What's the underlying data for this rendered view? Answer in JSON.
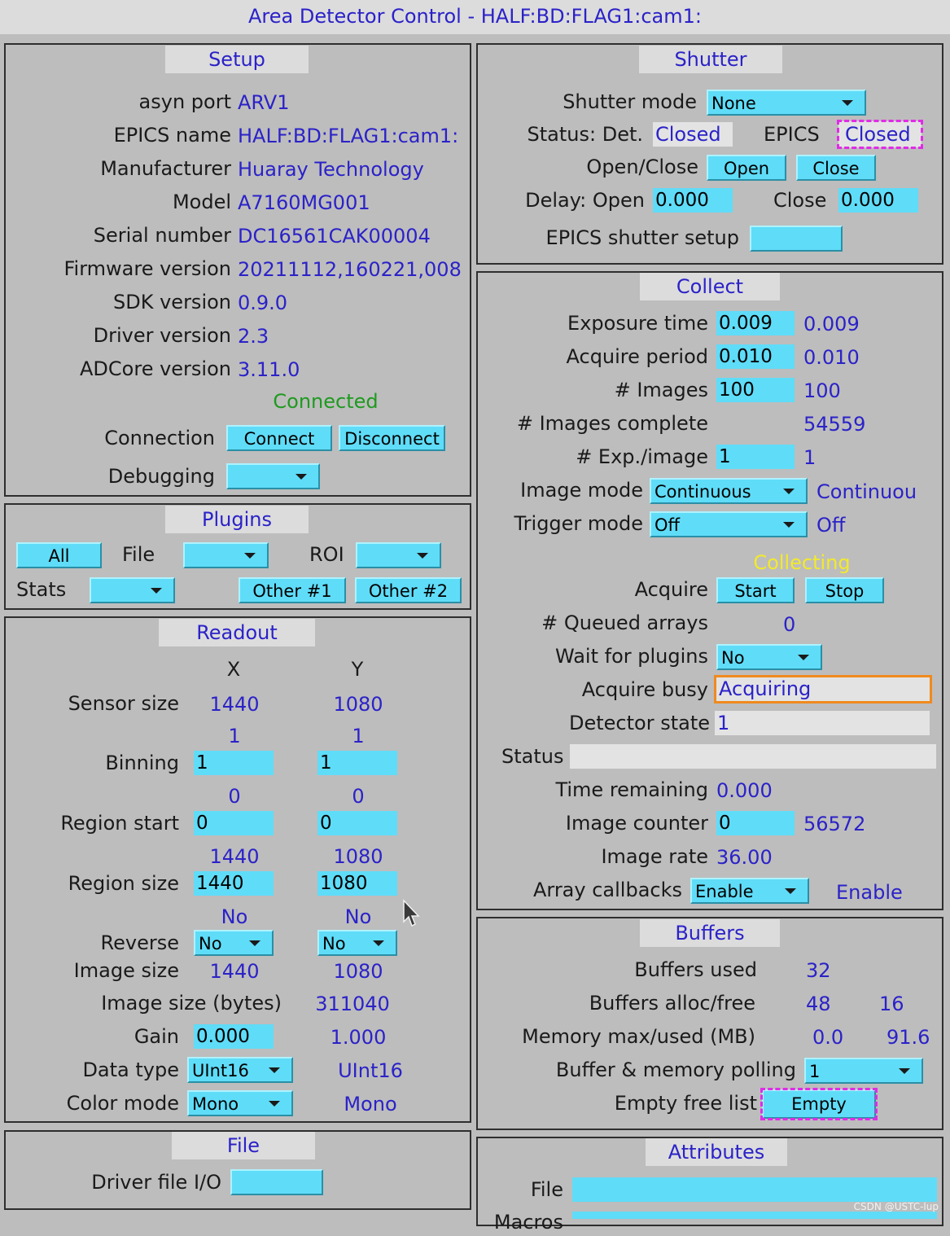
{
  "title": "Area Detector Control - HALF:BD:FLAG1:cam1:",
  "setup": {
    "title": "Setup",
    "rows": [
      {
        "label": "asyn port",
        "value": "ARV1"
      },
      {
        "label": "EPICS name",
        "value": "HALF:BD:FLAG1:cam1:"
      },
      {
        "label": "Manufacturer",
        "value": "Huaray Technology"
      },
      {
        "label": "Model",
        "value": "A7160MG001"
      },
      {
        "label": "Serial number",
        "value": "DC16561CAK00004"
      },
      {
        "label": "Firmware version",
        "value": "20211112,160221,008"
      },
      {
        "label": "SDK version",
        "value": "0.9.0"
      },
      {
        "label": "Driver version",
        "value": "2.3"
      },
      {
        "label": "ADCore version",
        "value": "3.11.0"
      }
    ],
    "status": "Connected",
    "connection_label": "Connection",
    "connect_button": "Connect",
    "disconnect_button": "Disconnect",
    "debugging_label": "Debugging",
    "debugging_value": ""
  },
  "plugins": {
    "title": "Plugins",
    "all_button": "All",
    "file_label": "File",
    "file_value": "",
    "roi_label": "ROI",
    "roi_value": "",
    "stats_label": "Stats",
    "stats_value": "",
    "other1_button": "Other #1",
    "other2_button": "Other #2"
  },
  "readout": {
    "title": "Readout",
    "col_x": "X",
    "col_y": "Y",
    "sensor_size": {
      "label": "Sensor size",
      "x": "1440",
      "y": "1080"
    },
    "binning": {
      "label": "Binning",
      "x_rbv": "1",
      "y_rbv": "1",
      "x_input": "1",
      "y_input": "1"
    },
    "region_start": {
      "label": "Region start",
      "x_rbv": "0",
      "y_rbv": "0",
      "x_input": "0",
      "y_input": "0"
    },
    "region_size": {
      "label": "Region size",
      "x_rbv": "1440",
      "y_rbv": "1080",
      "x_input": "1440",
      "y_input": "1080"
    },
    "reverse": {
      "label": "Reverse",
      "x_rbv": "No",
      "y_rbv": "No",
      "x_select": "No",
      "y_select": "No"
    },
    "image_size": {
      "label": "Image size",
      "x": "1440",
      "y": "1080"
    },
    "image_size_bytes": {
      "label": "Image size (bytes)",
      "value": "311040"
    },
    "gain": {
      "label": "Gain",
      "input": "0.000",
      "rbv": "1.000"
    },
    "data_type": {
      "label": "Data type",
      "select": "UInt16",
      "rbv": "UInt16"
    },
    "color_mode": {
      "label": "Color mode",
      "select": "Mono",
      "rbv": "Mono"
    }
  },
  "file_panel": {
    "title": "File",
    "driver_label": "Driver file I/O",
    "driver_value": ""
  },
  "shutter": {
    "title": "Shutter",
    "mode_label": "Shutter mode",
    "mode_value": "None",
    "status_label": "Status: Det.",
    "det_status": "Closed",
    "epics_label": "EPICS",
    "epics_status": "Closed",
    "openclose_label": "Open/Close",
    "open_button": "Open",
    "close_button": "Close",
    "delay_open_label": "Delay: Open",
    "delay_open_value": "0.000",
    "delay_close_label": "Close",
    "delay_close_value": "0.000",
    "epics_setup_label": "EPICS shutter setup",
    "epics_setup_value": ""
  },
  "collect": {
    "title": "Collect",
    "exposure": {
      "label": "Exposure time",
      "input": "0.009",
      "rbv": "0.009"
    },
    "period": {
      "label": "Acquire period",
      "input": "0.010",
      "rbv": "0.010"
    },
    "images": {
      "label": "# Images",
      "input": "100",
      "rbv": "100"
    },
    "images_complete": {
      "label": "# Images complete",
      "rbv": "54559"
    },
    "exp_per_image": {
      "label": "# Exp./image",
      "input": "1",
      "rbv": "1"
    },
    "image_mode": {
      "label": "Image mode",
      "select": "Continuous",
      "rbv": "Continuou"
    },
    "trigger_mode": {
      "label": "Trigger mode",
      "select": "Off",
      "rbv": "Off"
    },
    "state": "Collecting",
    "acquire_label": "Acquire",
    "start_button": "Start",
    "stop_button": "Stop",
    "queued": {
      "label": "# Queued arrays",
      "rbv": "0"
    },
    "wait_plugins": {
      "label": "Wait for plugins",
      "select": "No"
    },
    "busy": {
      "label": "Acquire busy",
      "rbv": "Acquiring"
    },
    "detector_state": {
      "label": "Detector state",
      "rbv": "1"
    },
    "status_label": "Status",
    "status_value": "",
    "time_remaining": {
      "label": "Time remaining",
      "rbv": "0.000"
    },
    "image_counter": {
      "label": "Image counter",
      "input": "0",
      "rbv": "56572"
    },
    "image_rate": {
      "label": "Image rate",
      "rbv": "36.00"
    },
    "array_callbacks": {
      "label": "Array callbacks",
      "select": "Enable",
      "rbv": "Enable"
    }
  },
  "buffers": {
    "title": "Buffers",
    "used": {
      "label": "Buffers used",
      "value": "32"
    },
    "alloc_free": {
      "label": "Buffers alloc/free",
      "alloc": "48",
      "free": "16"
    },
    "memory": {
      "label": "Memory max/used (MB)",
      "max": "0.0",
      "used": "91.6"
    },
    "polling": {
      "label": "Buffer & memory polling",
      "select": "1"
    },
    "empty_free": {
      "label": "Empty free list",
      "button": "Empty"
    }
  },
  "attributes": {
    "title": "Attributes",
    "file_label": "File",
    "file_value": "",
    "macros_label": "Macros"
  },
  "watermark": "CSDN @USTC-lup"
}
